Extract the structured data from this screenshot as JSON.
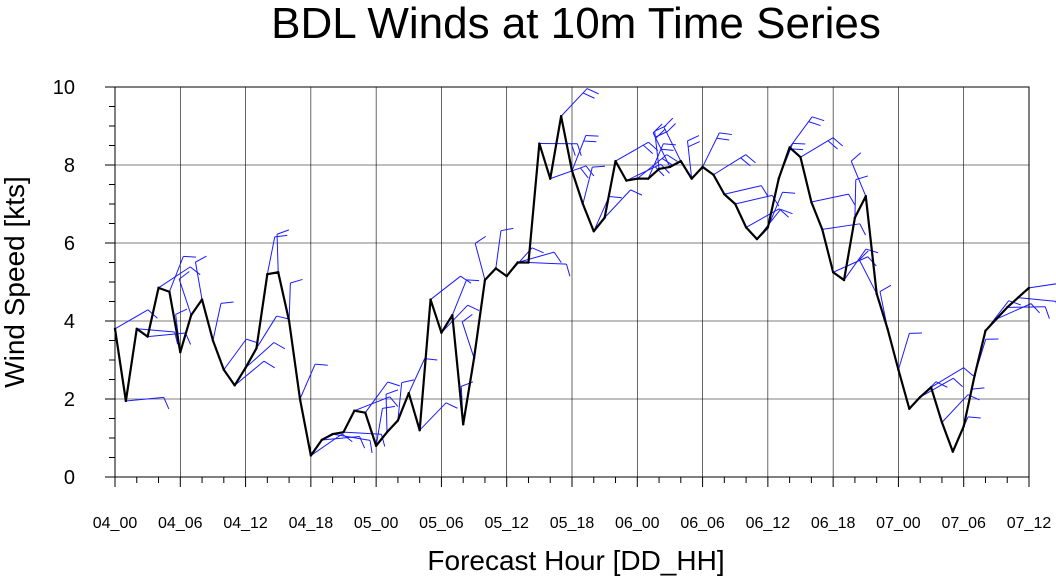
{
  "chart_data": {
    "type": "line",
    "title": "BDL Winds at 10m Time Series",
    "xlabel": "Forecast Hour [DD_HH]",
    "ylabel": "Wind Speed [kts]",
    "ylim": [
      0,
      10
    ],
    "yticks": [
      0,
      2,
      4,
      6,
      8,
      10
    ],
    "xticks": [
      "04_00",
      "04_06",
      "04_12",
      "04_18",
      "05_00",
      "05_06",
      "05_12",
      "05_18",
      "06_00",
      "06_06",
      "06_12",
      "06_18",
      "07_00",
      "07_06",
      "07_12"
    ],
    "grid": true,
    "colors": {
      "line": "#000000",
      "barbs": "#1a1aff",
      "grid": "#000000"
    },
    "series": [
      {
        "x": [
          "04_00",
          "04_01",
          "04_02",
          "04_03",
          "04_04",
          "04_05",
          "04_06",
          "04_07",
          "04_08",
          "04_09",
          "04_10",
          "04_11",
          "04_12",
          "04_13",
          "04_14",
          "04_15",
          "04_16",
          "04_17",
          "04_18",
          "04_19",
          "04_20",
          "04_21",
          "04_22",
          "04_23",
          "05_00",
          "05_01",
          "05_02",
          "05_03",
          "05_04",
          "05_05",
          "05_06",
          "05_07",
          "05_08",
          "05_09",
          "05_10",
          "05_11",
          "05_12",
          "05_13",
          "05_14",
          "05_15",
          "05_16",
          "05_17",
          "05_18",
          "05_19",
          "05_20",
          "05_21",
          "05_22",
          "05_23",
          "06_00",
          "06_01",
          "06_02",
          "06_03",
          "06_04",
          "06_05",
          "06_06",
          "06_07",
          "06_08",
          "06_09",
          "06_10",
          "06_11",
          "06_12",
          "06_13",
          "06_14",
          "06_15",
          "06_16",
          "06_17",
          "06_18",
          "06_19",
          "06_20",
          "06_21",
          "06_22",
          "06_23",
          "07_00",
          "07_01",
          "07_02",
          "07_03",
          "07_04",
          "07_05",
          "07_06",
          "07_07",
          "07_08",
          "07_09",
          "07_10",
          "07_11",
          "07_12"
        ],
        "values": [
          3.8,
          1.95,
          3.8,
          3.6,
          4.85,
          4.75,
          3.2,
          4.15,
          4.55,
          3.5,
          2.75,
          2.35,
          2.8,
          3.3,
          5.2,
          5.25,
          4.0,
          2.0,
          0.55,
          0.95,
          1.1,
          1.15,
          1.7,
          1.65,
          0.8,
          1.15,
          1.45,
          2.15,
          1.2,
          4.55,
          3.7,
          4.15,
          1.35,
          3.05,
          5.05,
          5.35,
          5.15,
          5.5,
          5.5,
          8.55,
          7.65,
          9.25,
          7.85,
          7.0,
          6.3,
          6.65,
          8.1,
          7.6,
          7.65,
          7.65,
          7.9,
          7.95,
          8.1,
          7.65,
          7.95,
          7.75,
          7.25,
          7.0,
          6.4,
          6.1,
          6.4,
          7.65,
          8.45,
          8.2,
          7.05,
          6.35,
          5.25,
          5.05,
          6.65,
          7.2,
          4.7,
          3.8,
          2.75,
          1.75,
          2.05,
          2.3,
          1.4,
          0.65,
          1.3,
          2.6,
          3.75,
          4.05,
          4.35,
          4.6,
          4.85
        ]
      }
    ]
  }
}
